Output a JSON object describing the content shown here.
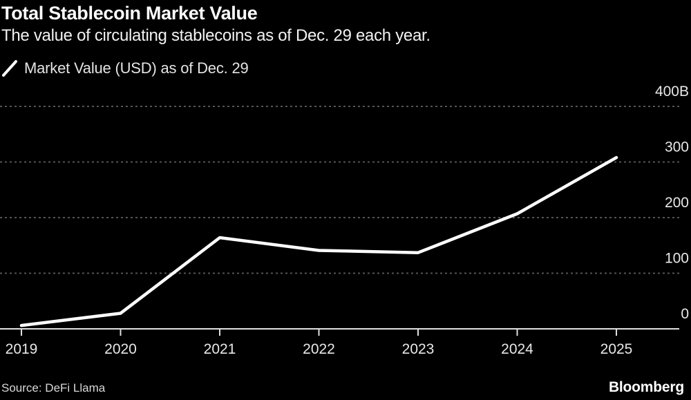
{
  "header": {
    "title": "Total Stablecoin Market Value",
    "subtitle": "The value of circulating stablecoins as of Dec. 29 each year."
  },
  "legend": {
    "label": "Market Value (USD) as of Dec. 29",
    "swatch": "diagonal-line-icon",
    "swatch_color": "#ffffff"
  },
  "chart_data": {
    "type": "line",
    "title": "Total Stablecoin Market Value",
    "subtitle": "The value of circulating stablecoins as of Dec. 29 each year.",
    "x": [
      "2019",
      "2020",
      "2021",
      "2022",
      "2023",
      "2024",
      "2025"
    ],
    "series": [
      {
        "name": "Market Value (USD) as of Dec. 29",
        "values": [
          6,
          28,
          164,
          141,
          137,
          207,
          308
        ],
        "color": "#ffffff"
      }
    ],
    "unit": "billions USD",
    "xlabel": "",
    "ylabel": "",
    "ylim": [
      0,
      400
    ],
    "ytick_values": [
      400,
      300,
      200,
      100,
      0
    ],
    "ytick_labels": [
      "400B",
      "300",
      "200",
      "100",
      "0"
    ],
    "axis_side": "right",
    "grid": "dashed-horizontal",
    "legend_position": "top-left",
    "background": "#000000"
  },
  "footer": {
    "source": "Source: DeFi Llama",
    "brand": "Bloomberg"
  },
  "colors": {
    "background": "#000000",
    "line": "#ffffff",
    "grid": "#555555",
    "axis": "#e0e0e0",
    "tick_label": "#e8e8e8",
    "muted_text": "#d9d9d9"
  }
}
